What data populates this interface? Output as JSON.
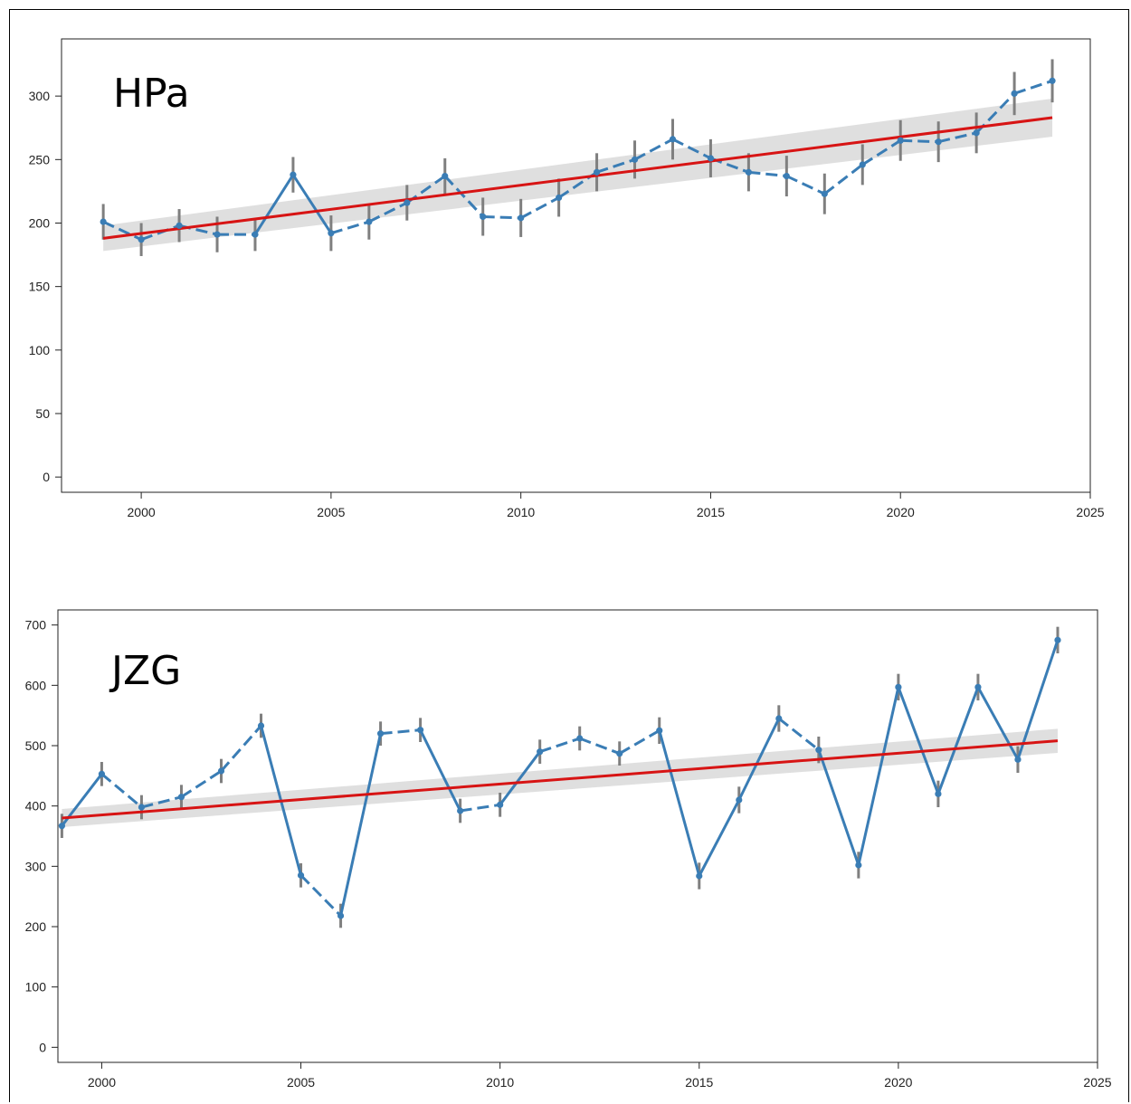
{
  "chart_data": [
    {
      "type": "line",
      "title": "HPa",
      "xlabel": "",
      "ylabel": "",
      "xlim": [
        1997.9,
        2025
      ],
      "ylim": [
        -12,
        345
      ],
      "xticks": [
        2000,
        2005,
        2010,
        2015,
        2020,
        2025
      ],
      "yticks": [
        0,
        50,
        100,
        150,
        200,
        250,
        300
      ],
      "grid": false,
      "colors": {
        "series": "#3a7db5",
        "errorbar": "#7f7f7f",
        "trend": "#d71414",
        "ci": "#d9d9d9"
      },
      "series": [
        {
          "x": [
            1999,
            2000,
            2001,
            2002,
            2003,
            2004,
            2005,
            2006,
            2007,
            2008,
            2009,
            2010,
            2011,
            2012,
            2013,
            2014,
            2015,
            2016,
            2017,
            2018,
            2019,
            2020,
            2021,
            2022,
            2023,
            2024
          ],
          "values": [
            201,
            187,
            198,
            191,
            191,
            238,
            192,
            201,
            216,
            237,
            205,
            204,
            220,
            240,
            250,
            266,
            251,
            240,
            237,
            223,
            246,
            265,
            264,
            271,
            302,
            312
          ],
          "error": [
            14,
            13,
            13,
            14,
            13,
            14,
            14,
            14,
            14,
            14,
            15,
            15,
            15,
            15,
            15,
            16,
            15,
            15,
            16,
            16,
            16,
            16,
            16,
            16,
            17,
            17
          ]
        }
      ],
      "trend": {
        "x": [
          1999,
          2024
        ],
        "y": [
          188,
          283
        ],
        "ci_start": 10,
        "ci_end": 15
      }
    },
    {
      "type": "line",
      "title": "JZG",
      "xlabel": "",
      "ylabel": "",
      "xlim": [
        1998.9,
        2025
      ],
      "ylim": [
        -25,
        725
      ],
      "xticks": [
        2000,
        2005,
        2010,
        2015,
        2020,
        2025
      ],
      "yticks": [
        0,
        100,
        200,
        300,
        400,
        500,
        600,
        700
      ],
      "grid": false,
      "colors": {
        "series": "#3a7db5",
        "errorbar": "#7f7f7f",
        "trend": "#d71414",
        "ci": "#d9d9d9"
      },
      "series": [
        {
          "x": [
            1999,
            2000,
            2001,
            2002,
            2003,
            2004,
            2005,
            2006,
            2007,
            2008,
            2009,
            2010,
            2011,
            2012,
            2013,
            2014,
            2015,
            2016,
            2017,
            2018,
            2019,
            2020,
            2021,
            2022,
            2023,
            2024
          ],
          "values": [
            367,
            453,
            398,
            415,
            458,
            533,
            285,
            218,
            520,
            526,
            392,
            402,
            490,
            512,
            487,
            525,
            284,
            410,
            545,
            493,
            302,
            597,
            420,
            597,
            477,
            675
          ],
          "error": [
            20,
            20,
            20,
            20,
            20,
            20,
            20,
            20,
            20,
            20,
            20,
            20,
            20,
            20,
            20,
            22,
            22,
            22,
            22,
            22,
            22,
            22,
            22,
            22,
            22,
            22
          ]
        }
      ],
      "trend": {
        "x": [
          1999,
          2024
        ],
        "y": [
          380,
          508
        ],
        "ci_start": 15,
        "ci_end": 20
      }
    }
  ]
}
